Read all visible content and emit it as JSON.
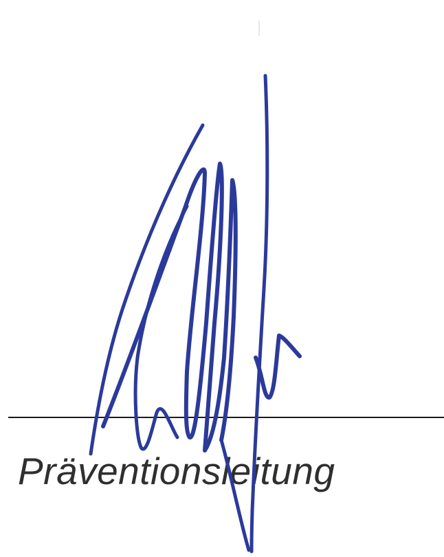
{
  "caption": {
    "text": "Präventionsleitung",
    "color": "#2f2f2f"
  },
  "signature": {
    "ink_color": "#2b3a9a",
    "line_color": "#1b1b1b"
  }
}
